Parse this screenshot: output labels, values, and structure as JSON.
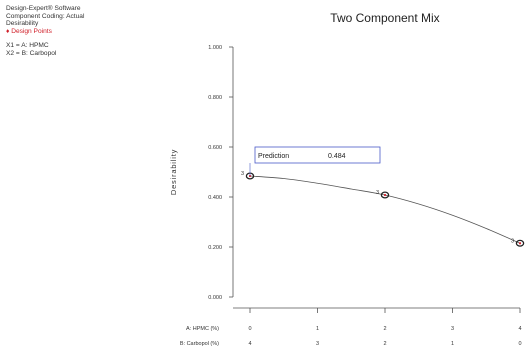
{
  "info": {
    "software": "Design-Expert® Software",
    "coding": "Component Coding: Actual",
    "response": "Desirability",
    "design_points": "Design Points",
    "x1": "X1 = A: HPMC",
    "x2": "X2 = B: Carbopol"
  },
  "colors": {
    "design_point": "#d0202a",
    "curve": "#555555",
    "prediction_box": "#4a5ac8"
  },
  "chart_data": {
    "type": "line",
    "title": "Two Component Mix",
    "ylabel": "Desirability",
    "ylim": [
      0,
      1
    ],
    "yticks": [
      "0.000",
      "0.200",
      "0.400",
      "0.600",
      "0.800",
      "1.000"
    ],
    "xlim": [
      0,
      4
    ],
    "x_axes": [
      {
        "label": "A: HPMC (%)",
        "ticks": [
          "0",
          "1",
          "2",
          "3",
          "4"
        ]
      },
      {
        "label": "B: Carbopol (%)",
        "ticks": [
          "4",
          "3",
          "2",
          "1",
          "0"
        ]
      }
    ],
    "series": [
      {
        "x": [
          0,
          0.5,
          1,
          1.5,
          2,
          2.5,
          3,
          3.5,
          4
        ],
        "y": [
          0.484,
          0.474,
          0.455,
          0.432,
          0.408,
          0.372,
          0.327,
          0.274,
          0.215
        ]
      }
    ],
    "design_points": [
      {
        "x": 0,
        "y": 0.484,
        "count": "3"
      },
      {
        "x": 2,
        "y": 0.408,
        "count": "3"
      },
      {
        "x": 4,
        "y": 0.215,
        "count": "3"
      }
    ],
    "prediction": {
      "label": "Prediction",
      "value": "0.484",
      "x": 0
    }
  }
}
